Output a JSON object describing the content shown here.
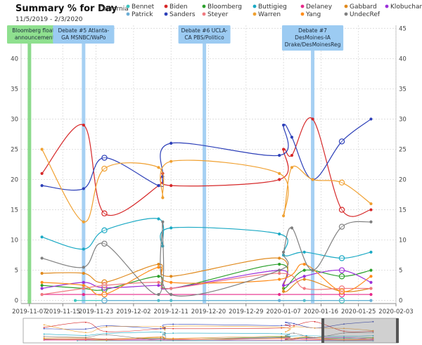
{
  "header": {
    "title": "Summary % for Day",
    "subtitle": "California",
    "date_range": "11/5/2019 - 2/3/2020"
  },
  "chart_data": {
    "type": "line",
    "x_axis": {
      "min": "2019-11-05",
      "max": "2020-02-03",
      "ticks": [
        "2019-11-07",
        "2019-11-15",
        "2019-11-23",
        "2019-12-02",
        "2019-12-11",
        "2019-12-20",
        "2019-12-29",
        "2020-01-07",
        "2020-01-16",
        "2020-01-25",
        "2020-02-03"
      ]
    },
    "y_axis": {
      "min": -0.5,
      "max": 45.5,
      "ticks": [
        0,
        5,
        10,
        15,
        20,
        25,
        30,
        35,
        40,
        45
      ]
    },
    "grid": true,
    "legend_position": "top",
    "series": [
      {
        "name": "Bennet",
        "color": "#3cc6c0",
        "points": [
          [
            "2019-11-18",
            0
          ],
          [
            "2019-11-25",
            0
          ],
          [
            "2019-12-08",
            0
          ],
          [
            "2019-12-11",
            0
          ],
          [
            "2020-01-06",
            0
          ],
          [
            "2020-01-12",
            0
          ],
          [
            "2020-01-21",
            0
          ],
          [
            "2020-01-28",
            0
          ]
        ]
      },
      {
        "name": "Biden",
        "color": "#d62728",
        "points": [
          [
            "2019-11-10",
            21
          ],
          [
            "2019-11-20",
            29
          ],
          [
            "2019-11-25",
            14.4
          ],
          [
            "2019-12-08",
            19
          ],
          [
            "2019-12-09",
            21
          ],
          [
            "2019-12-11",
            19
          ],
          [
            "2020-01-06",
            20
          ],
          [
            "2020-01-07",
            25
          ],
          [
            "2020-01-09",
            24
          ],
          [
            "2020-01-14",
            30
          ],
          [
            "2020-01-21",
            15
          ],
          [
            "2020-01-28",
            15
          ]
        ]
      },
      {
        "name": "Bloomberg",
        "color": "#2ca02c",
        "points": [
          [
            "2019-11-10",
            2.5
          ],
          [
            "2019-11-20",
            2
          ],
          [
            "2019-11-25",
            1.8
          ],
          [
            "2019-12-08",
            4
          ],
          [
            "2019-12-11",
            2
          ],
          [
            "2020-01-06",
            6
          ],
          [
            "2020-01-07",
            2
          ],
          [
            "2020-01-12",
            5
          ],
          [
            "2020-01-21",
            4
          ],
          [
            "2020-01-28",
            5
          ]
        ]
      },
      {
        "name": "Buttigieg",
        "color": "#1aa9c4",
        "points": [
          [
            "2019-11-10",
            10.5
          ],
          [
            "2019-11-20",
            8.5
          ],
          [
            "2019-11-25",
            11.6
          ],
          [
            "2019-12-08",
            13.5
          ],
          [
            "2019-12-09",
            9
          ],
          [
            "2019-12-11",
            12
          ],
          [
            "2020-01-06",
            11
          ],
          [
            "2020-01-07",
            7.5
          ],
          [
            "2020-01-12",
            8
          ],
          [
            "2020-01-21",
            7
          ],
          [
            "2020-01-28",
            8
          ]
        ]
      },
      {
        "name": "Delaney",
        "color": "#e7298a",
        "points": [
          [
            "2019-11-10",
            1
          ],
          [
            "2019-11-20",
            1
          ],
          [
            "2019-11-25",
            1
          ],
          [
            "2019-12-11",
            1
          ],
          [
            "2020-01-06",
            1
          ],
          [
            "2020-01-21",
            1
          ],
          [
            "2020-01-28",
            1
          ]
        ]
      },
      {
        "name": "Gabbard",
        "color": "#e08a1e",
        "points": [
          [
            "2019-11-10",
            4.5
          ],
          [
            "2019-11-20",
            4.5
          ],
          [
            "2019-11-25",
            3
          ],
          [
            "2019-12-08",
            6
          ],
          [
            "2019-12-11",
            4
          ],
          [
            "2020-01-06",
            7
          ],
          [
            "2020-01-07",
            1.5
          ],
          [
            "2020-01-12",
            3.5
          ],
          [
            "2020-01-21",
            1.5
          ],
          [
            "2020-01-28",
            2
          ]
        ]
      },
      {
        "name": "Klobuchar",
        "color": "#9b30d9",
        "points": [
          [
            "2019-11-10",
            2
          ],
          [
            "2019-11-20",
            3
          ],
          [
            "2019-11-25",
            2.1
          ],
          [
            "2019-12-08",
            2.5
          ],
          [
            "2019-12-11",
            2
          ],
          [
            "2020-01-06",
            5
          ],
          [
            "2020-01-07",
            2.5
          ],
          [
            "2020-01-12",
            4
          ],
          [
            "2020-01-21",
            5
          ],
          [
            "2020-01-28",
            3
          ]
        ]
      },
      {
        "name": "Patrick",
        "color": "#6baed6",
        "points": [
          [
            "2019-11-25",
            0
          ],
          [
            "2020-01-06",
            0
          ],
          [
            "2020-01-28",
            0
          ]
        ]
      },
      {
        "name": "Sanders",
        "color": "#2c3fb8",
        "points": [
          [
            "2019-11-10",
            19
          ],
          [
            "2019-11-20",
            18.5
          ],
          [
            "2019-11-25",
            23.6
          ],
          [
            "2019-12-08",
            19
          ],
          [
            "2019-12-09",
            20.5
          ],
          [
            "2019-12-11",
            26
          ],
          [
            "2020-01-06",
            24
          ],
          [
            "2020-01-07",
            29
          ],
          [
            "2020-01-09",
            27
          ],
          [
            "2020-01-14",
            20
          ],
          [
            "2020-01-21",
            26.3
          ],
          [
            "2020-01-28",
            30
          ]
        ]
      },
      {
        "name": "Steyer",
        "color": "#f07a80",
        "points": [
          [
            "2019-11-10",
            1
          ],
          [
            "2019-11-20",
            2
          ],
          [
            "2019-11-25",
            2.5
          ],
          [
            "2019-12-08",
            3
          ],
          [
            "2019-12-11",
            2
          ],
          [
            "2020-01-06",
            4.5
          ],
          [
            "2020-01-12",
            2
          ],
          [
            "2020-01-21",
            2
          ],
          [
            "2020-01-28",
            2
          ]
        ]
      },
      {
        "name": "Warren",
        "color": "#f0a030",
        "points": [
          [
            "2019-11-10",
            25
          ],
          [
            "2019-11-20",
            13
          ],
          [
            "2019-11-25",
            21.8
          ],
          [
            "2019-12-08",
            22
          ],
          [
            "2019-12-09",
            17
          ],
          [
            "2019-12-11",
            23
          ],
          [
            "2020-01-06",
            21
          ],
          [
            "2020-01-07",
            14
          ],
          [
            "2020-01-09",
            22
          ],
          [
            "2020-01-14",
            20
          ],
          [
            "2020-01-21",
            19.5
          ],
          [
            "2020-01-28",
            16
          ]
        ]
      },
      {
        "name": "Yang",
        "color": "#ff8c1a",
        "points": [
          [
            "2019-11-10",
            3
          ],
          [
            "2019-11-20",
            2.5
          ],
          [
            "2019-11-25",
            1
          ],
          [
            "2019-12-08",
            5.5
          ],
          [
            "2019-12-11",
            3
          ],
          [
            "2020-01-06",
            3.5
          ],
          [
            "2020-01-12",
            6
          ],
          [
            "2020-01-21",
            1.5
          ],
          [
            "2020-01-28",
            4
          ]
        ]
      },
      {
        "name": "UndecRef",
        "color": "#7f7f7f",
        "points": [
          [
            "2019-11-10",
            7
          ],
          [
            "2019-11-20",
            5.5
          ],
          [
            "2019-11-25",
            9.4
          ],
          [
            "2019-12-08",
            1
          ],
          [
            "2019-12-09",
            13
          ],
          [
            "2019-12-11",
            1
          ],
          [
            "2020-01-06",
            5
          ],
          [
            "2020-01-07",
            8
          ],
          [
            "2020-01-09",
            12
          ],
          [
            "2020-01-14",
            5
          ],
          [
            "2020-01-21",
            12.2
          ],
          [
            "2020-01-28",
            13
          ]
        ]
      }
    ],
    "events": [
      {
        "date": "2019-11-07",
        "lines": [
          "Bloomberg floats",
          "announcement"
        ],
        "color": "#7fd67f",
        "label_bg": "#8fe08f"
      },
      {
        "date": "2019-11-20",
        "lines": [
          "Debate #5 Atlanta-",
          "GA MSNBC/WaPo"
        ],
        "color": "#9ccbf2",
        "label_bg": "#9ccbf2"
      },
      {
        "date": "2019-12-19",
        "lines": [
          "Debate #6 UCLA-",
          "CA PBS/Politico"
        ],
        "color": "#9ccbf2",
        "label_bg": "#9ccbf2"
      },
      {
        "date": "2020-01-14",
        "lines": [
          "Debate #7",
          "DesMoines-IA",
          "Drake/DesMoinesReg"
        ],
        "color": "#9ccbf2",
        "label_bg": "#9ccbf2"
      }
    ]
  }
}
